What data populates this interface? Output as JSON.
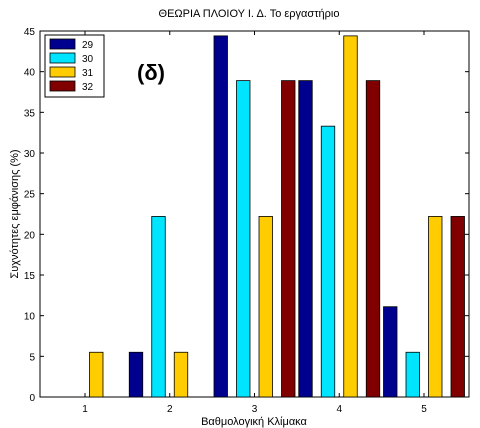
{
  "chart_data": {
    "type": "bar",
    "title": "ΘΕΩΡΙΑ ΠΛΟΙΟΥ Ι. Δ. Το εργαστήριο",
    "xlabel": "Βαθμολογική Κλίμακα",
    "ylabel": "Συχνότητες εμφάνισης (%)",
    "annotation": "(δ)",
    "categories": [
      "1",
      "2",
      "3",
      "4",
      "5"
    ],
    "ylim": [
      0,
      45
    ],
    "yticks": [
      0,
      5,
      10,
      15,
      20,
      25,
      30,
      35,
      40,
      45
    ],
    "legend_position": "top-left",
    "series": [
      {
        "name": "29",
        "color": "#00008f",
        "values": [
          0,
          5.5,
          44.4,
          38.9,
          11.1
        ]
      },
      {
        "name": "30",
        "color": "#00e5ff",
        "values": [
          0,
          22.2,
          38.9,
          33.3,
          5.5
        ]
      },
      {
        "name": "31",
        "color": "#ffcc00",
        "values": [
          5.5,
          5.5,
          22.2,
          44.4,
          22.2
        ]
      },
      {
        "name": "32",
        "color": "#800000",
        "values": [
          0,
          0,
          38.9,
          38.9,
          22.2
        ]
      }
    ]
  }
}
